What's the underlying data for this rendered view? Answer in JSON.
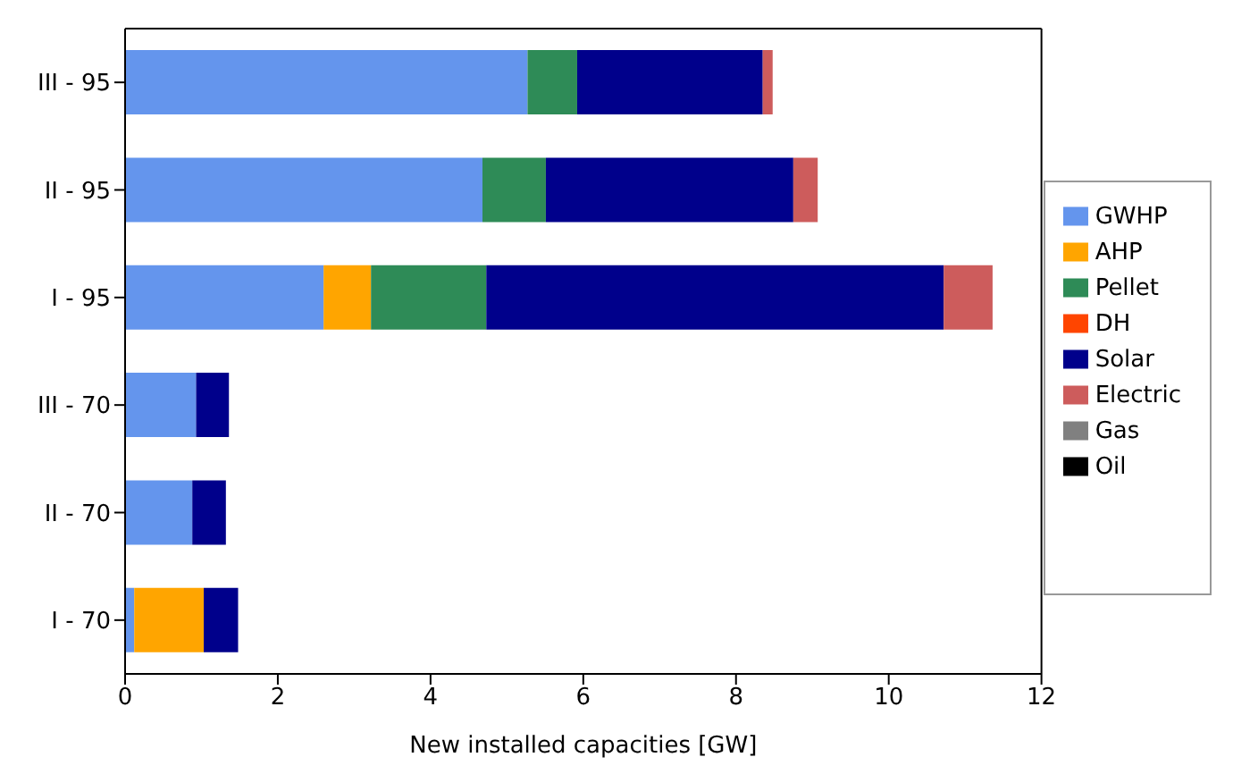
{
  "chart_data": {
    "type": "bar",
    "orientation": "horizontal",
    "stacked": true,
    "xlabel": "New installed capacities [GW]",
    "categories": [
      "III - 95",
      "II - 95",
      "I - 95",
      "III - 70",
      "II - 70",
      "I - 70"
    ],
    "series": [
      {
        "name": "GWHP",
        "color": "#6495ed",
        "values": [
          5.27,
          4.68,
          2.6,
          0.93,
          0.88,
          0.12
        ]
      },
      {
        "name": "AHP",
        "color": "#ffa500",
        "values": [
          0,
          0,
          0.62,
          0,
          0,
          0.91
        ]
      },
      {
        "name": "Pellet",
        "color": "#2e8b57",
        "values": [
          0.65,
          0.83,
          1.51,
          0,
          0,
          0
        ]
      },
      {
        "name": "DH",
        "color": "#ff4500",
        "values": [
          0,
          0,
          0,
          0,
          0,
          0
        ]
      },
      {
        "name": "Solar",
        "color": "#00008b",
        "values": [
          2.43,
          3.24,
          5.99,
          0.43,
          0.44,
          0.45
        ]
      },
      {
        "name": "Electric",
        "color": "#cd5c5c",
        "values": [
          0.13,
          0.32,
          0.64,
          0,
          0,
          0
        ]
      },
      {
        "name": "Gas",
        "color": "#808080",
        "values": [
          0,
          0,
          0,
          0,
          0,
          0
        ]
      },
      {
        "name": "Oil",
        "color": "#000000",
        "values": [
          0,
          0,
          0,
          0,
          0,
          0
        ]
      }
    ],
    "xlim": [
      0,
      12
    ],
    "xticks": [
      0,
      2,
      4,
      6,
      8,
      10,
      12
    ],
    "legend": "right",
    "grid": false
  }
}
